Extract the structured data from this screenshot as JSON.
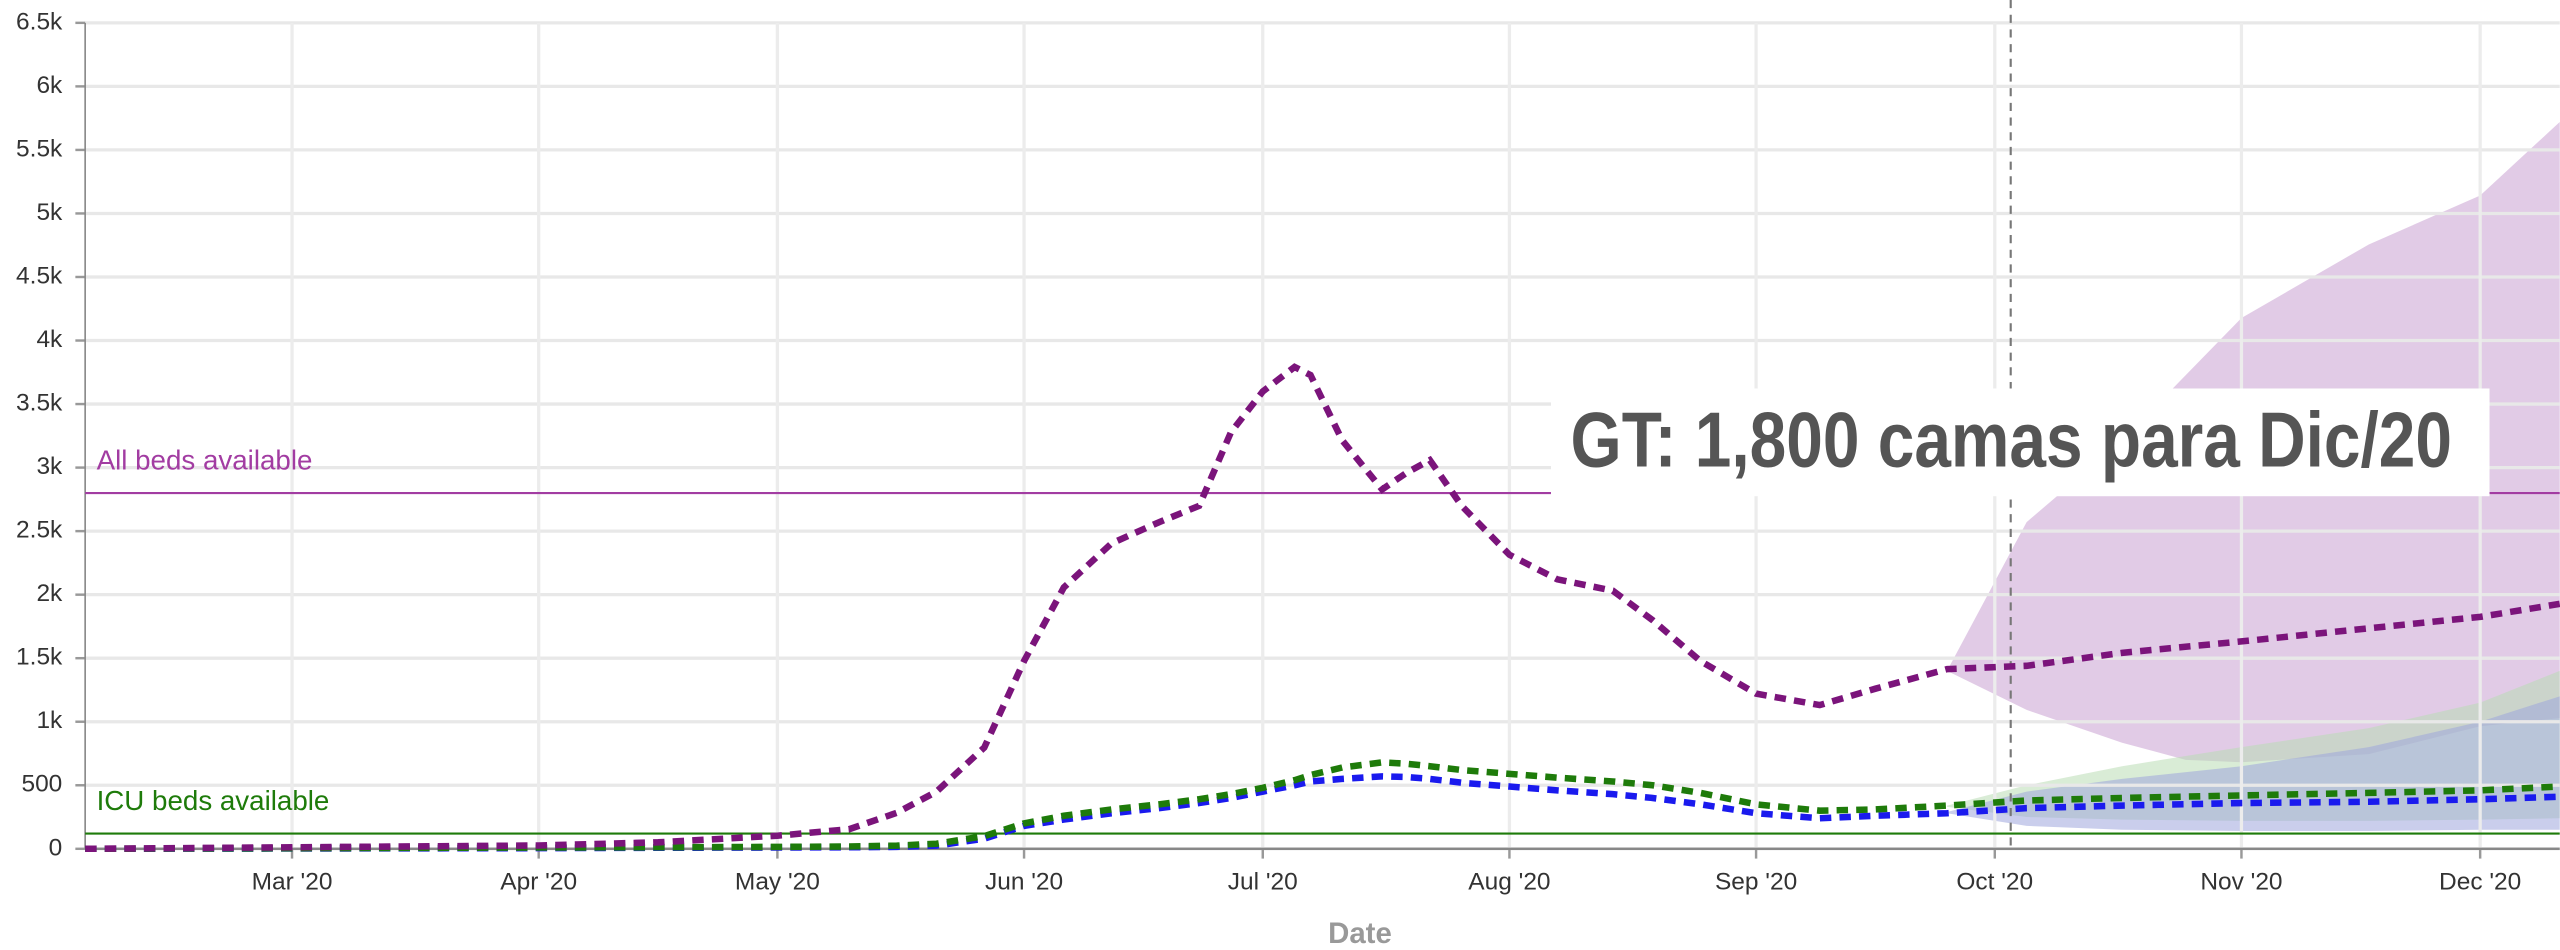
{
  "chart_data": {
    "type": "line",
    "x_label": "Date",
    "xlim": [
      "2020-02-04",
      "2020-12-11"
    ],
    "xticks": [
      {
        "value": "2020-03-01",
        "label": "Mar '20"
      },
      {
        "value": "2020-04-01",
        "label": "Apr '20"
      },
      {
        "value": "2020-05-01",
        "label": "May '20"
      },
      {
        "value": "2020-06-01",
        "label": "Jun '20"
      },
      {
        "value": "2020-07-01",
        "label": "Jul '20"
      },
      {
        "value": "2020-08-01",
        "label": "Aug '20"
      },
      {
        "value": "2020-09-01",
        "label": "Sep '20"
      },
      {
        "value": "2020-10-01",
        "label": "Oct '20"
      },
      {
        "value": "2020-11-01",
        "label": "Nov '20"
      },
      {
        "value": "2020-12-01",
        "label": "Dec '20"
      }
    ],
    "ylim": [
      0,
      6500
    ],
    "yticks": [
      0,
      500,
      {
        "value": 1000,
        "label": "1k"
      },
      {
        "value": 1500,
        "label": "1.5k"
      },
      {
        "value": 2000,
        "label": "2k"
      },
      {
        "value": 2500,
        "label": "2.5k"
      },
      {
        "value": 3000,
        "label": "3k"
      },
      {
        "value": 3500,
        "label": "3.5k"
      },
      {
        "value": 4000,
        "label": "4k"
      },
      {
        "value": 4500,
        "label": "4.5k"
      },
      {
        "value": 5000,
        "label": "5k"
      },
      {
        "value": 5500,
        "label": "5.5k"
      },
      {
        "value": 6000,
        "label": "6k"
      },
      {
        "value": 6500,
        "label": "6.5k"
      }
    ],
    "grid": true,
    "x": [
      "2020-02-04",
      "2020-04-01",
      "2020-04-16",
      "2020-05-01",
      "2020-05-10",
      "2020-05-16",
      "2020-05-21",
      "2020-05-27",
      "2020-06-01",
      "2020-06-06",
      "2020-06-12",
      "2020-06-18",
      "2020-06-23",
      "2020-06-27",
      "2020-07-01",
      "2020-07-05",
      "2020-07-07",
      "2020-07-11",
      "2020-07-16",
      "2020-07-19",
      "2020-07-22",
      "2020-07-26",
      "2020-08-01",
      "2020-08-07",
      "2020-08-14",
      "2020-08-19",
      "2020-08-25",
      "2020-09-01",
      "2020-09-09",
      "2020-09-16",
      "2020-09-25",
      "2020-10-05",
      "2020-10-17",
      "2020-11-01",
      "2020-11-17",
      "2020-12-01",
      "2020-12-11"
    ],
    "series": [
      {
        "color": "#7b147b",
        "values": [
          0,
          26,
          51,
          103,
          154,
          283,
          450,
          797,
          1478,
          2057,
          2404,
          2571,
          2699,
          3278,
          3599,
          3792,
          3728,
          3213,
          2828,
          2956,
          3059,
          2699,
          2314,
          2121,
          2031,
          1799,
          1478,
          1221,
          1131,
          1260,
          1414,
          1440,
          1542,
          1632,
          1735,
          1825,
          1928
        ]
      },
      {
        "color": "#1e7b0a",
        "values": [
          0,
          10,
          12,
          15,
          18,
          25,
          40,
          100,
          200,
          260,
          310,
          350,
          390,
          430,
          480,
          540,
          580,
          640,
          680,
          670,
          650,
          620,
          590,
          560,
          530,
          500,
          440,
          350,
          300,
          310,
          340,
          380,
          400,
          420,
          440,
          460,
          490
        ]
      },
      {
        "color": "#1a1aee",
        "values": [
          0,
          5,
          8,
          10,
          12,
          15,
          25,
          80,
          180,
          230,
          280,
          320,
          360,
          400,
          450,
          500,
          530,
          550,
          570,
          565,
          550,
          520,
          490,
          460,
          430,
          400,
          350,
          280,
          240,
          260,
          280,
          320,
          340,
          360,
          370,
          390,
          410
        ]
      }
    ],
    "bands": [
      {
        "color": "#c9a0d2",
        "x": [
          "2020-09-25",
          "2020-10-05",
          "2020-10-17",
          "2020-10-25",
          "2020-11-01",
          "2020-11-17",
          "2020-12-01",
          "2020-12-11"
        ],
        "lower": [
          1400,
          1093,
          835,
          700,
          681,
          745,
          964,
          1028
        ],
        "upper": [
          1400,
          2571,
          3213,
          3728,
          4177,
          4756,
          5141,
          5720
        ]
      },
      {
        "color": "#b9dcb4",
        "x": [
          "2020-09-25",
          "2020-10-05",
          "2020-10-17",
          "2020-11-01",
          "2020-11-17",
          "2020-12-01",
          "2020-12-11"
        ],
        "lower": [
          330,
          250,
          230,
          220,
          220,
          230,
          240
        ],
        "upper": [
          340,
          500,
          650,
          800,
          950,
          1150,
          1400
        ]
      },
      {
        "color": "#9ea6dc",
        "x": [
          "2020-09-25",
          "2020-10-05",
          "2020-10-17",
          "2020-11-01",
          "2020-11-17",
          "2020-12-01",
          "2020-12-11"
        ],
        "lower": [
          280,
          180,
          150,
          140,
          140,
          150,
          150
        ],
        "upper": [
          290,
          450,
          550,
          650,
          800,
          1000,
          1200
        ]
      }
    ],
    "reference_lines": [
      {
        "value": 2800,
        "label": "All beds available",
        "color": "#a23ca2"
      },
      {
        "value": 120,
        "label": "ICU beds available",
        "color": "#1e7b0a"
      }
    ],
    "today_line": "2020-10-03",
    "annotation": "GT: 1,800 camas para Dic/20"
  }
}
